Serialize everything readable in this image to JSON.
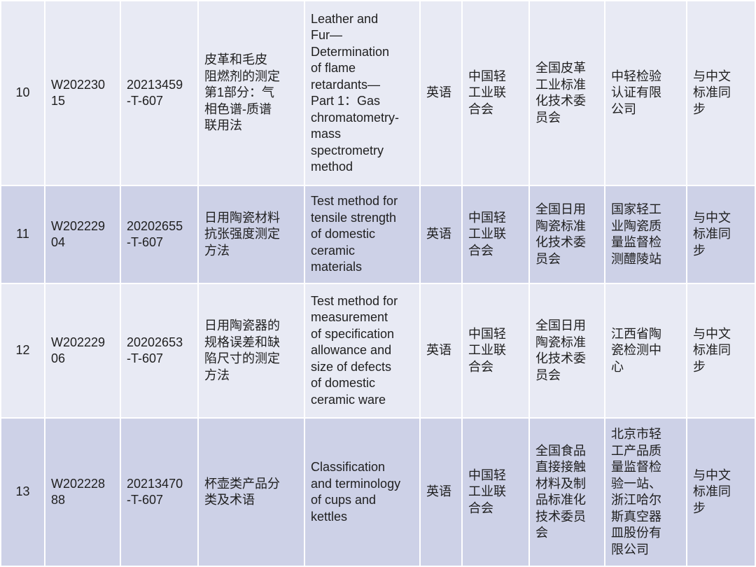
{
  "colors": {
    "row_light": "#E8EAF4",
    "row_dark": "#CDD1E7",
    "grid_line": "#FFFFFF",
    "text": "#1F1F1F"
  },
  "table": {
    "rows": [
      {
        "index": "10",
        "project_code": "W202230\n15",
        "plan_number": "20213459\n-T-607",
        "title_zh": "皮革和毛皮\n阻燃剂的测定\n第1部分：气\n相色谱-质谱\n联用法",
        "title_en": "Leather and\nFur—\nDetermination\nof flame\nretardants—\nPart 1：Gas\nchromatometry-\nmass\nspectrometry\nmethod",
        "language": "英语",
        "organization": "中国轻\n工业联\n合会",
        "committee": "全国皮革\n工业标准\n化技术委\n员会",
        "drafting_unit": "中轻检验\n认证有限\n公司",
        "sync_status": "与中文\n标准同\n步"
      },
      {
        "index": "11",
        "project_code": "W202229\n04",
        "plan_number": "20202655\n-T-607",
        "title_zh": "日用陶瓷材料\n抗张强度测定\n方法",
        "title_en": "Test method for\ntensile strength\nof domestic\nceramic\nmaterials",
        "language": "英语",
        "organization": "中国轻\n工业联\n合会",
        "committee": "全国日用\n陶瓷标准\n化技术委\n员会",
        "drafting_unit": "国家轻工\n业陶瓷质\n量监督检\n测醴陵站",
        "sync_status": "与中文\n标准同\n步"
      },
      {
        "index": "12",
        "project_code": "W202229\n06",
        "plan_number": "20202653\n-T-607",
        "title_zh": "日用陶瓷器的\n规格误差和缺\n陷尺寸的测定\n方法",
        "title_en": "Test method for\nmeasurement\nof specification\nallowance and\nsize of defects\nof domestic\nceramic ware",
        "language": "英语",
        "organization": "中国轻\n工业联\n合会",
        "committee": "全国日用\n陶瓷标准\n化技术委\n员会",
        "drafting_unit": "江西省陶\n瓷检测中\n心",
        "sync_status": "与中文\n标准同\n步"
      },
      {
        "index": "13",
        "project_code": "W202228\n88",
        "plan_number": "20213470\n-T-607",
        "title_zh": "杯壶类产品分\n类及术语",
        "title_en": "Classification\nand terminology\nof cups and\nkettles",
        "language": "英语",
        "organization": "中国轻\n工业联\n合会",
        "committee": "全国食品\n直接接触\n材料及制\n品标准化\n技术委员\n会",
        "drafting_unit": "北京市轻\n工产品质\n量监督检\n验一站、\n浙江哈尔\n斯真空器\n皿股份有\n限公司",
        "sync_status": "与中文\n标准同\n步"
      }
    ]
  }
}
